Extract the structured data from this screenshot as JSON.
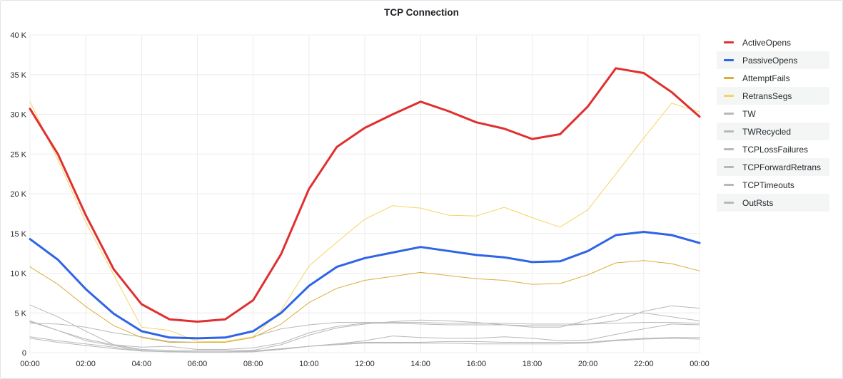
{
  "panel": {
    "title": "TCP Connection"
  },
  "chart_data": {
    "type": "line",
    "title": "TCP Connection",
    "xlabel": "",
    "ylabel": "",
    "x": [
      "00:00",
      "01:00",
      "02:00",
      "03:00",
      "04:00",
      "05:00",
      "06:00",
      "07:00",
      "08:00",
      "09:00",
      "10:00",
      "11:00",
      "12:00",
      "13:00",
      "14:00",
      "15:00",
      "16:00",
      "17:00",
      "18:00",
      "19:00",
      "20:00",
      "21:00",
      "22:00",
      "23:00",
      "24:00"
    ],
    "x_ticks": [
      "00:00",
      "02:00",
      "04:00",
      "06:00",
      "08:00",
      "10:00",
      "12:00",
      "14:00",
      "16:00",
      "18:00",
      "20:00",
      "22:00",
      "00:00"
    ],
    "y_ticks": [
      "0",
      "5 K",
      "10 K",
      "15 K",
      "20 K",
      "25 K",
      "30 K",
      "35 K",
      "40 K"
    ],
    "ylim": [
      0,
      40000
    ],
    "grid": true,
    "legend_position": "right",
    "series": [
      {
        "name": "ActiveOpens",
        "color": "#e02f2f",
        "width": 3,
        "values": [
          30700,
          25000,
          17300,
          10500,
          6100,
          4200,
          3900,
          4200,
          6600,
          12400,
          20600,
          25900,
          28300,
          30000,
          31600,
          30400,
          29000,
          28200,
          26900,
          27500,
          31000,
          35800,
          35200,
          32800,
          29700
        ]
      },
      {
        "name": "PassiveOpens",
        "color": "#2e64e6",
        "width": 3,
        "values": [
          14300,
          11700,
          8000,
          4900,
          2700,
          1900,
          1800,
          1900,
          2700,
          5000,
          8400,
          10800,
          11900,
          12600,
          13300,
          12800,
          12300,
          12000,
          11400,
          11500,
          12800,
          14800,
          15200,
          14800,
          13800
        ]
      },
      {
        "name": "AttemptFails",
        "color": "#d9ae38",
        "width": 1,
        "values": [
          10800,
          8600,
          5800,
          3400,
          1900,
          1300,
          1300,
          1300,
          1900,
          3600,
          6300,
          8100,
          9100,
          9600,
          10100,
          9700,
          9300,
          9100,
          8600,
          8700,
          9800,
          11300,
          11600,
          11200,
          10300
        ]
      },
      {
        "name": "RetransSegs",
        "color": "#f6d461",
        "width": 1,
        "values": [
          31600,
          24300,
          16400,
          9800,
          3200,
          2800,
          1400,
          1400,
          2000,
          5300,
          10900,
          13900,
          16800,
          18500,
          18200,
          17300,
          17200,
          18300,
          17000,
          15800,
          18000,
          22500,
          27000,
          31400,
          30300
        ]
      },
      {
        "name": "TW",
        "color": "#b7b8ba",
        "width": 1,
        "values": [
          6000,
          4500,
          2700,
          1000,
          400,
          300,
          300,
          300,
          300,
          1000,
          2200,
          3100,
          3600,
          3900,
          4100,
          4000,
          3800,
          3500,
          3200,
          3200,
          4100,
          4900,
          5000,
          4500,
          4000
        ]
      },
      {
        "name": "TWRecycled",
        "color": "#b7b8ba",
        "width": 1,
        "values": [
          3700,
          3600,
          3200,
          2500,
          2000,
          1400,
          1300,
          1400,
          2000,
          3000,
          3500,
          3800,
          3800,
          3800,
          3800,
          3700,
          3700,
          3700,
          3600,
          3600,
          3600,
          3700,
          3800,
          3800,
          3700
        ]
      },
      {
        "name": "TCPLossFailures",
        "color": "#b7b8ba",
        "width": 1,
        "values": [
          4000,
          2800,
          1700,
          1000,
          700,
          800,
          400,
          400,
          600,
          1200,
          2500,
          3300,
          3700,
          3700,
          3600,
          3500,
          3500,
          3500,
          3400,
          3400,
          3600,
          4000,
          5200,
          5900,
          5600
        ]
      },
      {
        "name": "TCPForwardRetrans",
        "color": "#b7b8ba",
        "width": 1,
        "values": [
          3900,
          2800,
          1500,
          900,
          300,
          100,
          100,
          100,
          200,
          400,
          800,
          1100,
          1500,
          2100,
          1900,
          1800,
          1800,
          2000,
          1800,
          1500,
          1600,
          2300,
          3000,
          3600,
          3500
        ]
      },
      {
        "name": "TCPTimeouts",
        "color": "#b7b8ba",
        "width": 1,
        "values": [
          2000,
          1500,
          1100,
          700,
          200,
          150,
          100,
          100,
          200,
          500,
          800,
          1100,
          1300,
          1300,
          1300,
          1400,
          1400,
          1300,
          1300,
          1300,
          1300,
          1600,
          1800,
          1900,
          1900
        ]
      },
      {
        "name": "OutRsts",
        "color": "#b7b8ba",
        "width": 1,
        "values": [
          1800,
          1300,
          900,
          500,
          200,
          100,
          50,
          50,
          100,
          400,
          800,
          1000,
          1200,
          1200,
          1200,
          1200,
          1100,
          1100,
          1100,
          1100,
          1200,
          1500,
          1700,
          1800,
          1700
        ]
      }
    ]
  }
}
